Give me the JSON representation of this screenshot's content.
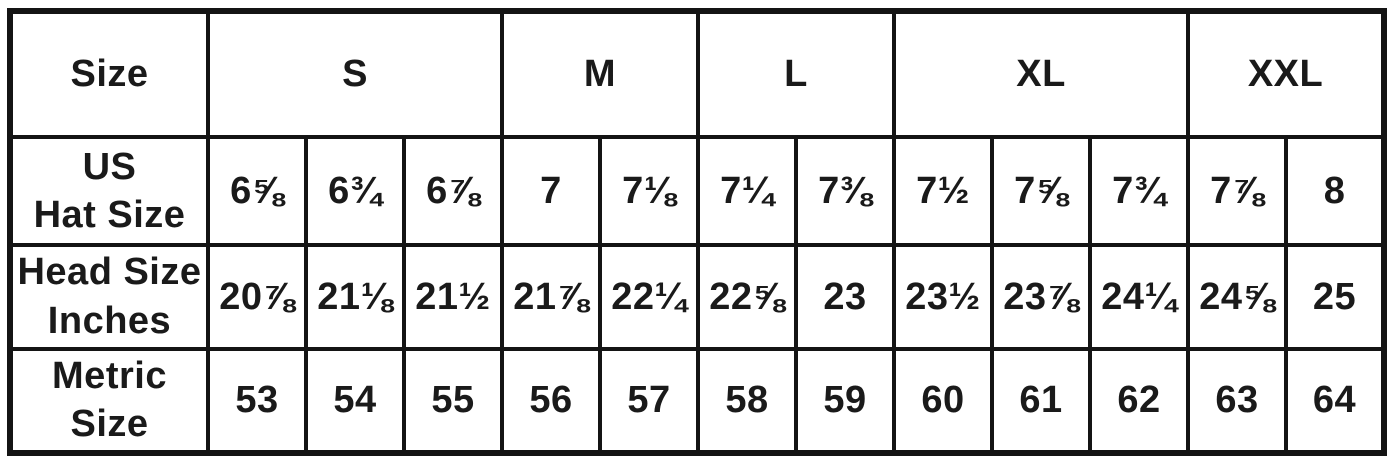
{
  "colors": {
    "background": "#ffffff",
    "border": "#141414",
    "text": "#1a1a1a"
  },
  "chart_data": {
    "type": "table",
    "corner_label": "Size",
    "size_groups": [
      {
        "label": "S",
        "span": 3
      },
      {
        "label": "M",
        "span": 2
      },
      {
        "label": "L",
        "span": 2
      },
      {
        "label": "XL",
        "span": 3
      },
      {
        "label": "XXL",
        "span": 2
      }
    ],
    "rows": [
      {
        "label_lines": [
          "US",
          "Hat Size"
        ],
        "values": [
          "6⅝",
          "6¾",
          "6⅞",
          "7",
          "7⅛",
          "7¼",
          "7⅜",
          "7½",
          "7⅝",
          "7¾",
          "7⅞",
          "8"
        ]
      },
      {
        "label_lines": [
          "Head Size",
          "Inches"
        ],
        "values": [
          "20⅞",
          "21⅛",
          "21½",
          "21⅞",
          "22¼",
          "22⅝",
          "23",
          "23½",
          "23⅞",
          "24¼",
          "24⅝",
          "25"
        ]
      },
      {
        "label_lines": [
          "Metric",
          "Size"
        ],
        "values": [
          "53",
          "54",
          "55",
          "56",
          "57",
          "58",
          "59",
          "60",
          "61",
          "62",
          "63",
          "64"
        ]
      }
    ]
  }
}
